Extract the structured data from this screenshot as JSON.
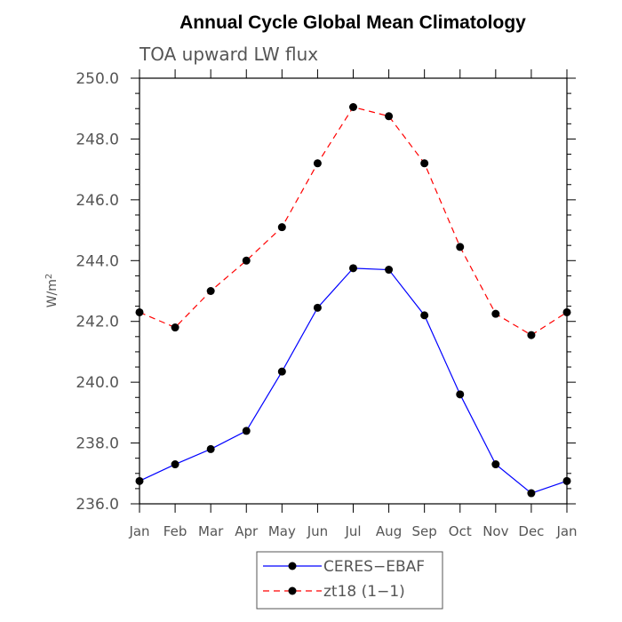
{
  "chart_data": {
    "type": "line",
    "title": "Annual Cycle Global Mean Climatology",
    "subtitle": "TOA upward LW flux",
    "xlabel": "",
    "ylabel": "W/m²",
    "ylabel_base": "W/m",
    "ylabel_sup": "2",
    "categories": [
      "Jan",
      "Feb",
      "Mar",
      "Apr",
      "May",
      "Jun",
      "Jul",
      "Aug",
      "Sep",
      "Oct",
      "Nov",
      "Dec",
      "Jan"
    ],
    "ylim": [
      236.0,
      250.0
    ],
    "yticks": [
      "236.0",
      "238.0",
      "240.0",
      "242.0",
      "244.0",
      "246.0",
      "248.0",
      "250.0"
    ],
    "grid": false,
    "legend_position": "bottom-center",
    "series": [
      {
        "name": "CERES−EBAF",
        "color": "#0000ff",
        "dash": "solid",
        "marker": "filled-circle",
        "values": [
          236.75,
          237.3,
          237.8,
          238.4,
          240.35,
          242.45,
          243.75,
          243.7,
          242.2,
          239.6,
          237.3,
          236.35,
          236.75
        ]
      },
      {
        "name": "zt18 (1−1)",
        "color": "#ff0000",
        "dash": "dashed",
        "marker": "filled-circle",
        "values": [
          242.3,
          241.8,
          243.0,
          244.0,
          245.1,
          247.2,
          249.05,
          248.75,
          247.2,
          244.45,
          242.25,
          241.55,
          242.3
        ]
      }
    ]
  }
}
